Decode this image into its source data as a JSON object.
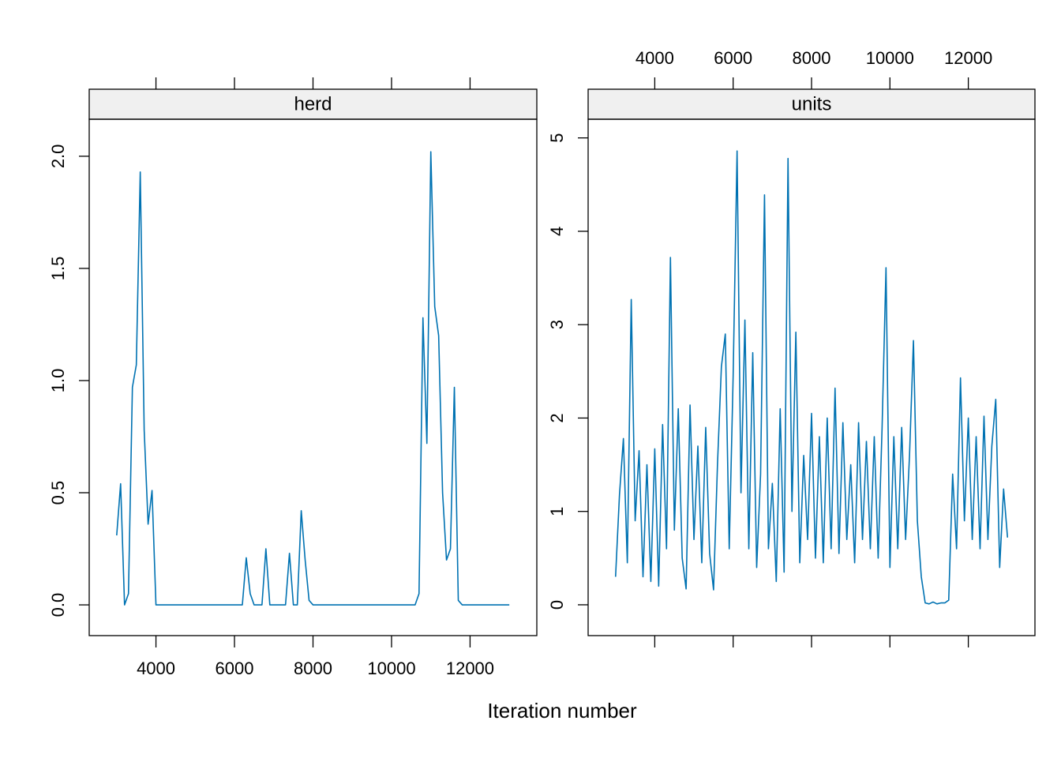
{
  "chart_data": [
    {
      "type": "line",
      "title": "herd",
      "xlabel": "Iteration number",
      "color": "#0072b2",
      "x_tick_side": "bottom",
      "xlim": [
        2300,
        13700
      ],
      "ylim": [
        -0.137,
        2.165
      ],
      "xticks": [
        4000,
        6000,
        8000,
        10000,
        12000
      ],
      "yticks": [
        {
          "value": 0,
          "label": "0.0"
        },
        0.5,
        {
          "value": 1,
          "label": "1.0"
        },
        1.5,
        {
          "value": 2,
          "label": "2.0"
        }
      ],
      "x": [
        3000,
        3100,
        3200,
        3300,
        3400,
        3500,
        3600,
        3700,
        3800,
        3900,
        4000,
        4100,
        4200,
        4300,
        4400,
        4500,
        4600,
        4700,
        4800,
        4900,
        5000,
        5100,
        5200,
        5300,
        5400,
        5500,
        5600,
        5700,
        5800,
        5900,
        6000,
        6100,
        6200,
        6300,
        6400,
        6500,
        6600,
        6700,
        6800,
        6900,
        7000,
        7100,
        7200,
        7300,
        7400,
        7500,
        7600,
        7700,
        7800,
        7900,
        8000,
        8100,
        8200,
        8300,
        8400,
        8500,
        8600,
        8700,
        8800,
        8900,
        9000,
        9100,
        9200,
        9300,
        9400,
        9500,
        9600,
        9700,
        9800,
        9900,
        10000,
        10100,
        10200,
        10300,
        10400,
        10500,
        10600,
        10700,
        10800,
        10900,
        11000,
        11100,
        11200,
        11300,
        11400,
        11500,
        11600,
        11700,
        11800,
        11900,
        12000,
        12100,
        12200,
        12300,
        12400,
        12500,
        12600,
        12700,
        12800,
        12900,
        13000
      ],
      "values": [
        0.31,
        0.54,
        0.0,
        0.05,
        0.97,
        1.07,
        1.93,
        0.78,
        0.36,
        0.51,
        0.0,
        0,
        0,
        0,
        0,
        0,
        0,
        0,
        0,
        0,
        0,
        0,
        0,
        0,
        0,
        0,
        0,
        0,
        0,
        0,
        0,
        0,
        0,
        0.21,
        0.05,
        0,
        0,
        0,
        0.25,
        0,
        0,
        0,
        0,
        0,
        0.23,
        0,
        0,
        0.42,
        0.2,
        0.02,
        0,
        0,
        0,
        0,
        0,
        0,
        0,
        0,
        0,
        0,
        0,
        0,
        0,
        0,
        0,
        0,
        0,
        0,
        0,
        0,
        0,
        0,
        0,
        0,
        0,
        0,
        0,
        0.05,
        1.28,
        0.72,
        2.02,
        1.33,
        1.2,
        0.5,
        0.2,
        0.25,
        0.97,
        0.02,
        0,
        0,
        0,
        0,
        0,
        0,
        0,
        0,
        0,
        0,
        0,
        0,
        0
      ]
    },
    {
      "type": "line",
      "title": "units",
      "color": "#0072b2",
      "x_tick_side": "top",
      "xlim": [
        2300,
        13700
      ],
      "ylim": [
        -0.33,
        5.2
      ],
      "xticks": [
        4000,
        6000,
        8000,
        10000,
        12000
      ],
      "yticks": [
        0,
        1,
        2,
        3,
        4,
        5
      ],
      "x": [
        3000,
        3100,
        3200,
        3300,
        3400,
        3500,
        3600,
        3700,
        3800,
        3900,
        4000,
        4100,
        4200,
        4300,
        4400,
        4500,
        4600,
        4700,
        4800,
        4900,
        5000,
        5100,
        5200,
        5300,
        5400,
        5500,
        5600,
        5700,
        5800,
        5900,
        6000,
        6100,
        6200,
        6300,
        6400,
        6500,
        6600,
        6700,
        6800,
        6900,
        7000,
        7100,
        7200,
        7300,
        7400,
        7500,
        7600,
        7700,
        7800,
        7900,
        8000,
        8100,
        8200,
        8300,
        8400,
        8500,
        8600,
        8700,
        8800,
        8900,
        9000,
        9100,
        9200,
        9300,
        9400,
        9500,
        9600,
        9700,
        9800,
        9900,
        10000,
        10100,
        10200,
        10300,
        10400,
        10500,
        10600,
        10700,
        10800,
        10900,
        11000,
        11100,
        11200,
        11300,
        11400,
        11500,
        11600,
        11700,
        11800,
        11900,
        12000,
        12100,
        12200,
        12300,
        12400,
        12500,
        12600,
        12700,
        12800,
        12900,
        13000
      ],
      "values": [
        0.3,
        1.18,
        1.78,
        0.45,
        3.27,
        0.9,
        1.65,
        0.3,
        1.5,
        0.25,
        1.67,
        0.2,
        1.93,
        0.6,
        3.72,
        0.8,
        2.1,
        0.5,
        0.17,
        2.14,
        0.7,
        1.7,
        0.45,
        1.9,
        0.55,
        0.16,
        1.5,
        2.55,
        2.9,
        0.6,
        2.45,
        4.86,
        1.2,
        3.05,
        0.6,
        2.7,
        0.4,
        1.4,
        4.39,
        0.6,
        1.3,
        0.25,
        2.1,
        0.35,
        4.78,
        1.0,
        2.92,
        0.45,
        1.6,
        0.7,
        2.05,
        0.5,
        1.8,
        0.45,
        2.0,
        0.6,
        2.32,
        0.55,
        1.95,
        0.7,
        1.5,
        0.45,
        1.95,
        0.7,
        1.75,
        0.6,
        1.8,
        0.5,
        1.9,
        3.61,
        0.4,
        1.8,
        0.6,
        1.9,
        0.7,
        1.6,
        2.83,
        0.9,
        0.3,
        0.02,
        0.01,
        0.03,
        0.01,
        0.02,
        0.02,
        0.05,
        1.4,
        0.6,
        2.43,
        0.9,
        2.0,
        0.7,
        1.8,
        0.6,
        2.02,
        0.7,
        1.7,
        2.2,
        0.4,
        1.24,
        0.72
      ]
    }
  ]
}
